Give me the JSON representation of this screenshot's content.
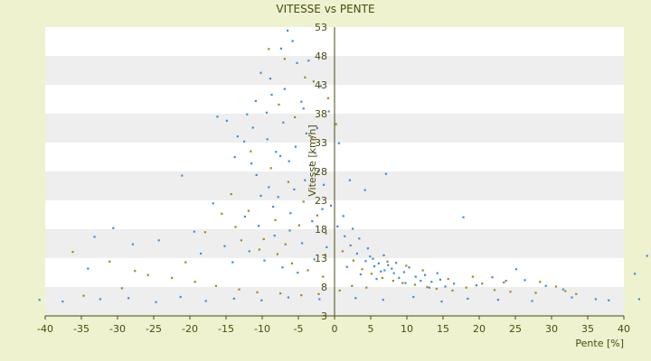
{
  "chart_data": {
    "type": "scatter",
    "title": "VITESSE vs PENTE",
    "xlabel": "Pente [%]",
    "ylabel": "Vitesse [km/h]",
    "xlim": [
      -40,
      40
    ],
    "ylim": [
      3,
      53
    ],
    "x_ticks": [
      -40,
      -35,
      -30,
      -25,
      -20,
      -15,
      -10,
      -5,
      0,
      5,
      10,
      15,
      20,
      25,
      30,
      35,
      40
    ],
    "y_ticks": [
      3,
      8,
      13,
      18,
      23,
      28,
      33,
      38,
      43,
      48,
      53
    ],
    "grid": "horizontal alternating bands",
    "legend": "none",
    "colors": {
      "background": "#eef2cf",
      "plot_band_light": "#ffffff",
      "plot_band_dark": "#eeeeee",
      "point_blue": "#3d8fd6",
      "point_olive": "#9c8a1a",
      "axis_line": "#4a4a10"
    },
    "series": [
      {
        "color": "#3d8fd6",
        "points": [
          [
            -10.2,
            45.1
          ],
          [
            -8.7,
            41.3
          ],
          [
            -6.5,
            52.4
          ],
          [
            -5.2,
            46.8
          ],
          [
            -9.4,
            38.2
          ],
          [
            -7.1,
            36.5
          ],
          [
            -4.6,
            40.1
          ],
          [
            -11.3,
            35.6
          ],
          [
            -12.5,
            33.2
          ],
          [
            -8.1,
            31.4
          ],
          [
            -6.3,
            29.8
          ],
          [
            -3.9,
            34.6
          ],
          [
            -2.7,
            31.2
          ],
          [
            -13.8,
            30.5
          ],
          [
            -14.9,
            36.8
          ],
          [
            -16.2,
            37.5
          ],
          [
            -10.8,
            27.4
          ],
          [
            -9.1,
            25.3
          ],
          [
            -7.8,
            23.6
          ],
          [
            -5.6,
            24.9
          ],
          [
            -4.1,
            26.5
          ],
          [
            -2.3,
            28.1
          ],
          [
            -1.5,
            25.7
          ],
          [
            -21.1,
            27.3
          ],
          [
            -16.8,
            22.5
          ],
          [
            -12.4,
            20.2
          ],
          [
            -10.5,
            18.6
          ],
          [
            -8.3,
            16.9
          ],
          [
            -6.2,
            17.8
          ],
          [
            -4.5,
            15.6
          ],
          [
            -3.1,
            19.4
          ],
          [
            -1.7,
            21.5
          ],
          [
            1.2,
            20.3
          ],
          [
            2.5,
            18.1
          ],
          [
            3.4,
            16.4
          ],
          [
            4.6,
            14.7
          ],
          [
            5.3,
            12.9
          ],
          [
            6.8,
            13.5
          ],
          [
            7.4,
            11.8
          ],
          [
            8.5,
            12.2
          ],
          [
            9.6,
            10.6
          ],
          [
            10.3,
            11.4
          ],
          [
            11.2,
            9.8
          ],
          [
            12.5,
            10.1
          ],
          [
            13.4,
            8.9
          ],
          [
            14.6,
            9.3
          ],
          [
            15.3,
            8.1
          ],
          [
            16.5,
            8.6
          ],
          [
            17.8,
            20.1
          ],
          [
            7.1,
            27.6
          ],
          [
            4.2,
            24.8
          ],
          [
            2.1,
            26.5
          ],
          [
            0.6,
            32.9
          ],
          [
            -0.8,
            38.4
          ],
          [
            -1.9,
            42.8
          ],
          [
            -3.6,
            47.2
          ],
          [
            -5.8,
            50.6
          ],
          [
            -7.4,
            49.3
          ],
          [
            -24.3,
            16.1
          ],
          [
            -27.9,
            15.4
          ],
          [
            -34.1,
            11.2
          ],
          [
            -30.6,
            18.2
          ],
          [
            -33.2,
            16.7
          ],
          [
            -18.5,
            13.8
          ],
          [
            -19.4,
            17.6
          ],
          [
            -15.2,
            15.1
          ],
          [
            -14.1,
            12.3
          ],
          [
            -11.8,
            14.2
          ],
          [
            -9.7,
            12.6
          ],
          [
            -7.2,
            11.4
          ],
          [
            -5.1,
            10.5
          ],
          [
            -2.8,
            12.8
          ],
          [
            -1.1,
            14.9
          ],
          [
            1.7,
            11.5
          ],
          [
            3.6,
            10.2
          ],
          [
            5.8,
            9.4
          ],
          [
            6.4,
            10.7
          ],
          [
            8.9,
            9.6
          ],
          [
            9.8,
            8.7
          ],
          [
            11.9,
            9.1
          ],
          [
            13.1,
            7.9
          ],
          [
            14.2,
            10.4
          ],
          [
            19.6,
            8.3
          ],
          [
            21.8,
            9.7
          ],
          [
            23.4,
            8.8
          ],
          [
            25.1,
            11.1
          ],
          [
            26.3,
            9.2
          ],
          [
            29.2,
            8.2
          ],
          [
            31.6,
            7.6
          ],
          [
            36.1,
            5.9
          ],
          [
            41.5,
            10.3
          ],
          [
            43.2,
            13.4
          ],
          [
            -40.8,
            5.8
          ],
          [
            -37.6,
            5.5
          ],
          [
            -32.4,
            5.9
          ],
          [
            -28.5,
            6.1
          ],
          [
            -24.7,
            5.4
          ],
          [
            -21.3,
            6.3
          ],
          [
            -17.8,
            5.6
          ],
          [
            -13.9,
            6.0
          ],
          [
            -10.1,
            5.7
          ],
          [
            -6.4,
            6.2
          ],
          [
            -2.1,
            5.9
          ],
          [
            2.9,
            6.1
          ],
          [
            6.7,
            5.8
          ],
          [
            10.9,
            6.3
          ],
          [
            14.8,
            5.5
          ],
          [
            18.4,
            6.0
          ],
          [
            22.6,
            5.8
          ],
          [
            27.3,
            5.6
          ],
          [
            32.8,
            6.2
          ],
          [
            37.9,
            5.7
          ],
          [
            42.1,
            5.9
          ],
          [
            4.9,
            13.3
          ],
          [
            6.1,
            12.1
          ],
          [
            7.9,
            11.2
          ],
          [
            5.5,
            11.6
          ],
          [
            6.9,
            10.9
          ],
          [
            8.2,
            10.4
          ],
          [
            4.3,
            12.5
          ],
          [
            3.1,
            13.8
          ],
          [
            2.2,
            15.2
          ],
          [
            1.4,
            16.8
          ],
          [
            0.4,
            18.5
          ],
          [
            -0.5,
            22.1
          ],
          [
            -2.4,
            35.5
          ],
          [
            -4.3,
            38.9
          ],
          [
            -6.9,
            42.3
          ],
          [
            -8.9,
            44.1
          ],
          [
            -10.9,
            40.2
          ],
          [
            -12.1,
            37.9
          ],
          [
            -13.4,
            34.1
          ],
          [
            -11.5,
            29.4
          ],
          [
            -9.3,
            33.6
          ],
          [
            -7.5,
            30.7
          ],
          [
            -5.4,
            32.3
          ],
          [
            -3.4,
            29.1
          ],
          [
            -6.1,
            20.8
          ],
          [
            -8.5,
            21.9
          ],
          [
            -10.2,
            23.8
          ]
        ]
      },
      {
        "color": "#9c8a1a",
        "points": [
          [
            -9.1,
            49.2
          ],
          [
            -6.9,
            47.5
          ],
          [
            -4.1,
            44.3
          ],
          [
            -7.7,
            39.6
          ],
          [
            -5.5,
            37.4
          ],
          [
            -3.2,
            33.8
          ],
          [
            -11.6,
            31.5
          ],
          [
            -8.8,
            28.6
          ],
          [
            -6.4,
            26.2
          ],
          [
            -4.3,
            22.8
          ],
          [
            -2.4,
            20.4
          ],
          [
            -1.2,
            17.3
          ],
          [
            -14.3,
            24.1
          ],
          [
            -15.6,
            20.7
          ],
          [
            -17.9,
            17.5
          ],
          [
            -12.9,
            16.1
          ],
          [
            -10.4,
            14.5
          ],
          [
            -7.9,
            13.7
          ],
          [
            -5.9,
            12.1
          ],
          [
            -3.7,
            10.9
          ],
          [
            -1.6,
            9.8
          ],
          [
            1.1,
            14.2
          ],
          [
            2.6,
            12.6
          ],
          [
            3.8,
            11.1
          ],
          [
            5.1,
            10.3
          ],
          [
            6.6,
            9.6
          ],
          [
            8.1,
            9.1
          ],
          [
            9.4,
            8.7
          ],
          [
            11.1,
            8.4
          ],
          [
            12.8,
            8.0
          ],
          [
            14.1,
            7.7
          ],
          [
            16.3,
            7.4
          ],
          [
            18.2,
            7.9
          ],
          [
            20.4,
            8.6
          ],
          [
            22.1,
            7.5
          ],
          [
            24.3,
            7.2
          ],
          [
            27.8,
            7.0
          ],
          [
            30.6,
            8.1
          ],
          [
            33.4,
            6.8
          ],
          [
            -36.2,
            14.1
          ],
          [
            -31.1,
            12.4
          ],
          [
            -27.6,
            10.8
          ],
          [
            -22.5,
            9.6
          ],
          [
            -19.3,
            8.9
          ],
          [
            -16.4,
            8.2
          ],
          [
            -13.2,
            7.6
          ],
          [
            -10.7,
            7.1
          ],
          [
            -7.5,
            6.9
          ],
          [
            -4.6,
            6.6
          ],
          [
            -2.2,
            6.8
          ],
          [
            0.7,
            7.4
          ],
          [
            2.4,
            8.2
          ],
          [
            4.4,
            7.9
          ],
          [
            0.2,
            36.2
          ],
          [
            -0.9,
            40.7
          ],
          [
            -2.9,
            43.6
          ],
          [
            -20.6,
            12.3
          ],
          [
            -25.8,
            10.1
          ],
          [
            -29.4,
            7.8
          ],
          [
            -34.7,
            6.5
          ],
          [
            7.3,
            12.4
          ],
          [
            9.9,
            11.7
          ],
          [
            12.2,
            10.9
          ],
          [
            15.7,
            9.4
          ],
          [
            19.1,
            9.8
          ],
          [
            23.7,
            9.1
          ],
          [
            28.4,
            8.9
          ],
          [
            31.9,
            7.3
          ],
          [
            -8.2,
            19.6
          ],
          [
            -6.8,
            15.4
          ],
          [
            -11.9,
            21.2
          ],
          [
            -13.7,
            18.4
          ],
          [
            -9.8,
            16.3
          ],
          [
            -4.9,
            18.7
          ],
          [
            -1.3,
            13.6
          ]
        ]
      }
    ]
  }
}
